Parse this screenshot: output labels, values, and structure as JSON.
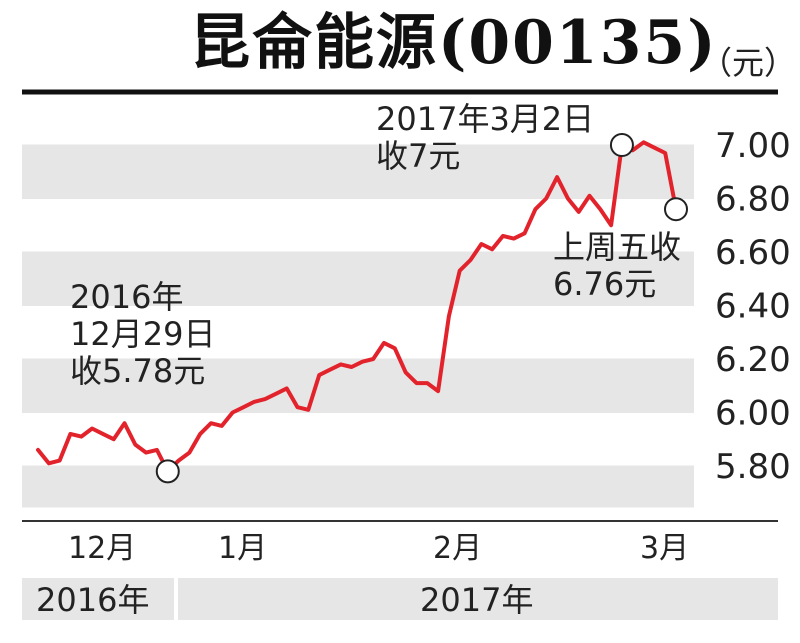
{
  "title": "昆侖能源(00135)",
  "unit": "（元）",
  "chart_data": {
    "type": "line",
    "ylim": [
      5.7,
      7.1
    ],
    "yticks": [
      "7.00",
      "6.80",
      "6.60",
      "6.40",
      "6.20",
      "6.00",
      "5.80"
    ],
    "ytick_values": [
      7.0,
      6.8,
      6.6,
      6.4,
      6.2,
      6.0,
      5.8
    ],
    "months": [
      "12月",
      "1月",
      "2月",
      "3月"
    ],
    "years": [
      "2016年",
      "2017年"
    ],
    "series": [
      {
        "color": "#e3232c",
        "values": [
          5.86,
          5.81,
          5.82,
          5.92,
          5.91,
          5.94,
          5.92,
          5.9,
          5.96,
          5.88,
          5.85,
          5.86,
          5.78,
          5.82,
          5.85,
          5.92,
          5.96,
          5.95,
          6.0,
          6.02,
          6.04,
          6.05,
          6.07,
          6.09,
          6.02,
          6.01,
          6.14,
          6.16,
          6.18,
          6.17,
          6.19,
          6.2,
          6.26,
          6.24,
          6.15,
          6.11,
          6.11,
          6.08,
          6.36,
          6.53,
          6.57,
          6.63,
          6.61,
          6.66,
          6.65,
          6.67,
          6.76,
          6.8,
          6.88,
          6.8,
          6.75,
          6.81,
          6.76,
          6.7,
          7.0,
          6.98,
          7.01,
          6.99,
          6.97,
          6.76
        ]
      }
    ],
    "markers": [
      {
        "index": 12,
        "value": 5.78
      },
      {
        "index": 54,
        "value": 7.0
      },
      {
        "index": 59,
        "value": 6.76
      }
    ],
    "annotations": [
      {
        "lines": [
          "2016年",
          "12月29日",
          "收5.78元"
        ]
      },
      {
        "lines": [
          "2017年3月2日",
          "收7元"
        ]
      },
      {
        "lines": [
          "上周五收",
          "6.76元"
        ]
      }
    ]
  }
}
